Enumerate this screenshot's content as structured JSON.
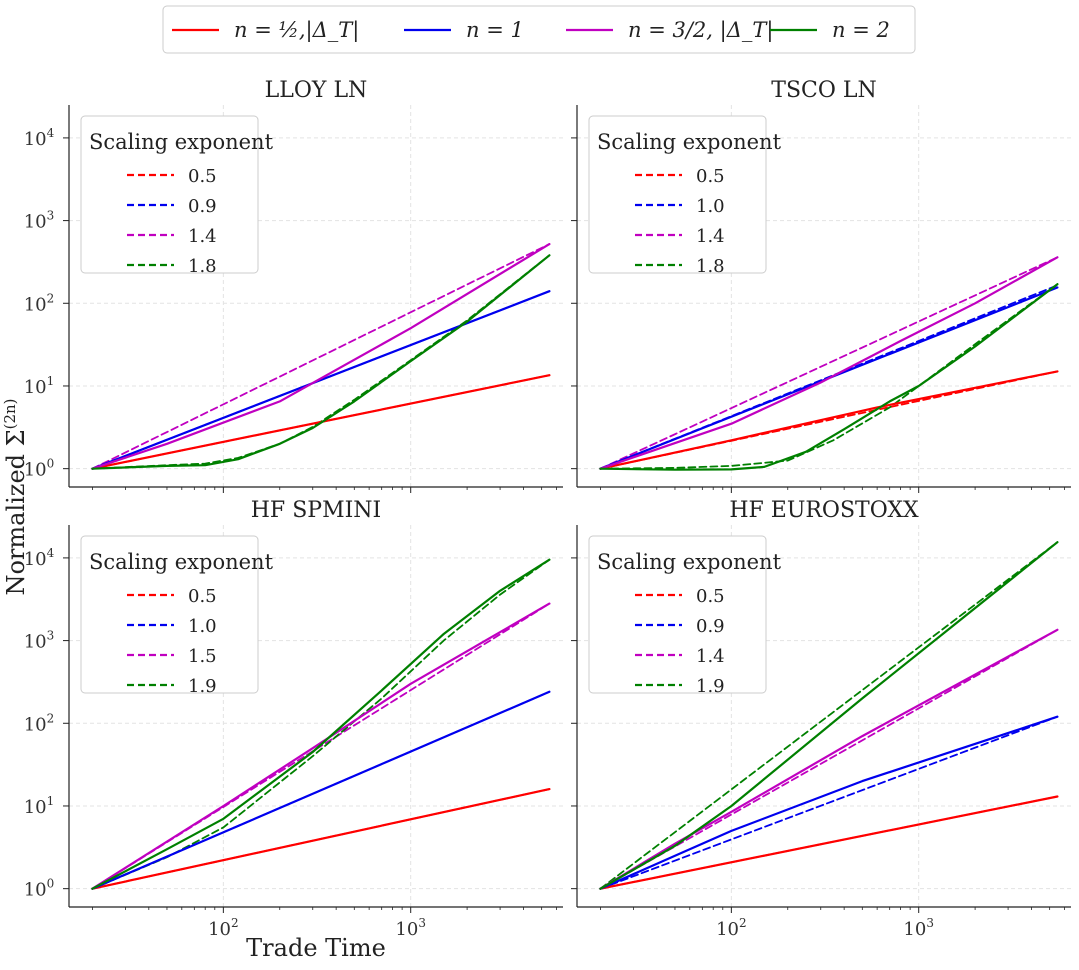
{
  "colors": {
    "n_half": "#ff0000",
    "n_one": "#0000ee",
    "n_three_half": "#c000c0",
    "n_two": "#008000"
  },
  "figure": {
    "top_legend": [
      {
        "label": "n = ½,|Δ_T|",
        "color": "#ff0000"
      },
      {
        "label": "n = 1",
        "color": "#0000ee"
      },
      {
        "label": "n = 3/2, |Δ_T|",
        "color": "#c000c0"
      },
      {
        "label": "n = 2",
        "color": "#008000"
      }
    ],
    "ylabel": "Normalized Σ^(2n)",
    "ylabel_base": "Normalized Σ",
    "ylabel_sup": "(2n)",
    "xlabel": "Trade Time",
    "tick_base": "10"
  },
  "chart_data": [
    {
      "type": "line",
      "title": "LLOY_LN",
      "title_display": "LLOY LN",
      "xscale": "log",
      "yscale": "log",
      "xlim": [
        15,
        6500
      ],
      "ylim": [
        0.6,
        25000
      ],
      "legend": {
        "title": "Scaling exponent",
        "placement": "top-left",
        "entries": [
          "0.5",
          "0.9",
          "1.4",
          "1.8"
        ]
      },
      "series": [
        {
          "name": "n=1/2",
          "color": "#ff0000",
          "style": "solid",
          "x": [
            20,
            5500
          ],
          "y": [
            1,
            13.5
          ]
        },
        {
          "name": "n=1/2 fit",
          "color": "#ff0000",
          "style": "dashed",
          "x": [
            20,
            5500
          ],
          "y": [
            1,
            13.5
          ]
        },
        {
          "name": "n=1",
          "color": "#0000ee",
          "style": "solid",
          "x": [
            20,
            5500
          ],
          "y": [
            1,
            140
          ]
        },
        {
          "name": "n=1 fit",
          "color": "#0000ee",
          "style": "dashed",
          "x": [
            20,
            5500
          ],
          "y": [
            1,
            140
          ]
        },
        {
          "name": "n=3/2",
          "color": "#c000c0",
          "style": "solid",
          "x": [
            20,
            50,
            200,
            1000,
            5500
          ],
          "y": [
            1,
            2,
            6.5,
            50,
            520
          ]
        },
        {
          "name": "n=3/2 fit",
          "color": "#c000c0",
          "style": "dashed",
          "x": [
            20,
            5500
          ],
          "y": [
            1,
            520
          ]
        },
        {
          "name": "n=2",
          "color": "#008000",
          "style": "solid",
          "x": [
            20,
            50,
            80,
            120,
            200,
            300,
            500,
            1000,
            2000,
            5500
          ],
          "y": [
            1,
            1.08,
            1.1,
            1.3,
            2,
            3.1,
            6.5,
            20,
            60,
            380
          ]
        },
        {
          "name": "n=2 fit",
          "color": "#008000",
          "style": "dashed",
          "x": [
            20,
            50,
            80,
            120,
            200,
            300,
            500,
            1000,
            2000,
            5500
          ],
          "y": [
            1,
            1.1,
            1.15,
            1.35,
            2,
            3.2,
            6.8,
            20.5,
            62,
            380
          ]
        }
      ]
    },
    {
      "type": "line",
      "title": "TSCO_LN",
      "title_display": "TSCO LN",
      "xscale": "log",
      "yscale": "log",
      "xlim": [
        15,
        6500
      ],
      "ylim": [
        0.6,
        25000
      ],
      "legend": {
        "title": "Scaling exponent",
        "placement": "top-left",
        "entries": [
          "0.5",
          "1.0",
          "1.4",
          "1.8"
        ]
      },
      "series": [
        {
          "name": "n=1/2",
          "color": "#ff0000",
          "style": "solid",
          "x": [
            20,
            100,
            600,
            5500
          ],
          "y": [
            1,
            2.2,
            5.5,
            15
          ]
        },
        {
          "name": "n=1/2 fit",
          "color": "#ff0000",
          "style": "dashed",
          "x": [
            20,
            5500
          ],
          "y": [
            1,
            15
          ]
        },
        {
          "name": "n=1",
          "color": "#0000ee",
          "style": "solid",
          "x": [
            20,
            5500
          ],
          "y": [
            1,
            155
          ]
        },
        {
          "name": "n=1 fit",
          "color": "#0000ee",
          "style": "dashed",
          "x": [
            20,
            5500
          ],
          "y": [
            1,
            165
          ]
        },
        {
          "name": "n=3/2",
          "color": "#c000c0",
          "style": "solid",
          "x": [
            20,
            100,
            300,
            800,
            2000,
            5500
          ],
          "y": [
            1,
            3.5,
            11,
            35,
            100,
            360
          ]
        },
        {
          "name": "n=3/2 fit",
          "color": "#c000c0",
          "style": "dashed",
          "x": [
            20,
            5500
          ],
          "y": [
            1,
            360
          ]
        },
        {
          "name": "n=2",
          "color": "#008000",
          "style": "solid",
          "x": [
            20,
            50,
            100,
            150,
            250,
            400,
            700,
            1000,
            2000,
            5500
          ],
          "y": [
            1,
            0.97,
            0.98,
            1.05,
            1.6,
            3,
            6.5,
            10,
            30,
            170
          ]
        },
        {
          "name": "n=2 fit",
          "color": "#008000",
          "style": "dashed",
          "x": [
            20,
            50,
            100,
            200,
            350,
            700,
            1000,
            2000,
            5500
          ],
          "y": [
            1,
            1.02,
            1.08,
            1.25,
            2.2,
            5.5,
            10,
            32,
            170
          ]
        }
      ]
    },
    {
      "type": "line",
      "title": "HF_SPMINI",
      "title_display": "HF SPMINI",
      "xscale": "log",
      "yscale": "log",
      "xlim": [
        15,
        6500
      ],
      "ylim": [
        0.6,
        25000
      ],
      "legend": {
        "title": "Scaling exponent",
        "placement": "top-left",
        "entries": [
          "0.5",
          "1.0",
          "1.5",
          "1.9"
        ]
      },
      "series": [
        {
          "name": "n=1/2",
          "color": "#ff0000",
          "style": "solid",
          "x": [
            20,
            5500
          ],
          "y": [
            1,
            16
          ]
        },
        {
          "name": "n=1/2 fit",
          "color": "#ff0000",
          "style": "dashed",
          "x": [
            20,
            5500
          ],
          "y": [
            1,
            16
          ]
        },
        {
          "name": "n=1",
          "color": "#0000ee",
          "style": "solid",
          "x": [
            20,
            5500
          ],
          "y": [
            1,
            240
          ]
        },
        {
          "name": "n=1 fit",
          "color": "#0000ee",
          "style": "dashed",
          "x": [
            20,
            5500
          ],
          "y": [
            1,
            240
          ]
        },
        {
          "name": "n=3/2",
          "color": "#c000c0",
          "style": "solid",
          "x": [
            20,
            100,
            300,
            1000,
            5500
          ],
          "y": [
            1,
            10,
            50,
            300,
            2800
          ]
        },
        {
          "name": "n=3/2 fit",
          "color": "#c000c0",
          "style": "dashed",
          "x": [
            20,
            5500
          ],
          "y": [
            1,
            2800
          ]
        },
        {
          "name": "n=2",
          "color": "#008000",
          "style": "solid",
          "x": [
            20,
            50,
            100,
            300,
            700,
            1500,
            3000,
            5500
          ],
          "y": [
            1,
            3,
            7,
            45,
            250,
            1200,
            4000,
            9500
          ]
        },
        {
          "name": "n=2 fit",
          "color": "#008000",
          "style": "dashed",
          "x": [
            20,
            50,
            100,
            300,
            700,
            1500,
            3000,
            5500
          ],
          "y": [
            1,
            2.4,
            5.5,
            40,
            200,
            1000,
            3600,
            9500
          ]
        }
      ]
    },
    {
      "type": "line",
      "title": "HF_EUROSTOXX",
      "title_display": "HF EUROSTOXX",
      "xscale": "log",
      "yscale": "log",
      "xlim": [
        15,
        6500
      ],
      "ylim": [
        0.6,
        25000
      ],
      "legend": {
        "title": "Scaling exponent",
        "placement": "top-left",
        "entries": [
          "0.5",
          "0.9",
          "1.4",
          "1.9"
        ]
      },
      "series": [
        {
          "name": "n=1/2",
          "color": "#ff0000",
          "style": "solid",
          "x": [
            20,
            5500
          ],
          "y": [
            1,
            13
          ]
        },
        {
          "name": "n=1/2 fit",
          "color": "#ff0000",
          "style": "dashed",
          "x": [
            20,
            5500
          ],
          "y": [
            1,
            13
          ]
        },
        {
          "name": "n=1",
          "color": "#0000ee",
          "style": "solid",
          "x": [
            20,
            50,
            100,
            500,
            5500
          ],
          "y": [
            1,
            2.5,
            5,
            20,
            120
          ]
        },
        {
          "name": "n=1 fit",
          "color": "#0000ee",
          "style": "dashed",
          "x": [
            20,
            5500
          ],
          "y": [
            1,
            120
          ]
        },
        {
          "name": "n=3/2",
          "color": "#c000c0",
          "style": "solid",
          "x": [
            20,
            50,
            100,
            500,
            5500
          ],
          "y": [
            1,
            3.5,
            8.5,
            70,
            1350
          ]
        },
        {
          "name": "n=3/2 fit",
          "color": "#c000c0",
          "style": "dashed",
          "x": [
            20,
            5500
          ],
          "y": [
            1,
            1350
          ]
        },
        {
          "name": "n=2",
          "color": "#008000",
          "style": "solid",
          "x": [
            20,
            50,
            100,
            500,
            5500
          ],
          "y": [
            1,
            3.3,
            10,
            200,
            15500
          ]
        },
        {
          "name": "n=2 fit",
          "color": "#008000",
          "style": "dashed",
          "x": [
            20,
            5500
          ],
          "y": [
            1,
            15500
          ]
        }
      ]
    }
  ]
}
